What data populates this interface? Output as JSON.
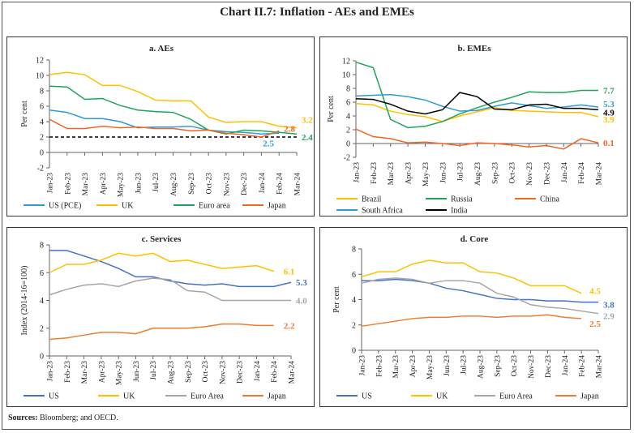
{
  "title": "Chart II.7: Inflation - AEs and EMEs",
  "source": {
    "label": "Sources:",
    "text": "Bloomberg; and OECD."
  },
  "chart_data": [
    {
      "type": "line",
      "title": "a. AEs",
      "ylabel": "Per cent",
      "ylim": [
        -2,
        12
      ],
      "yticks": [
        -2,
        0,
        2,
        4,
        6,
        8,
        10,
        12
      ],
      "categories": [
        "Jan-23",
        "Feb-23",
        "Mar-23",
        "Apr-23",
        "May-23",
        "Jun-23",
        "Jul-23",
        "Aug-23",
        "Sep-23",
        "Oct-23",
        "Nov-23",
        "Dec-23",
        "Jan-24",
        "Feb-24",
        "Mar-24"
      ],
      "reference_line": {
        "value": 2,
        "style": "dashed",
        "color": "#000000"
      },
      "series": [
        {
          "name": "US (PCE)",
          "color": "#2e9bd6",
          "values": [
            5.5,
            5.2,
            4.4,
            4.4,
            4.0,
            3.2,
            3.3,
            3.3,
            3.4,
            2.9,
            2.7,
            2.6,
            2.4,
            2.5,
            null
          ],
          "end_label": "2.5"
        },
        {
          "name": "UK",
          "color": "#ffc000",
          "values": [
            10.1,
            10.4,
            10.1,
            8.7,
            8.7,
            7.9,
            6.8,
            6.7,
            6.7,
            4.6,
            3.9,
            4.0,
            4.0,
            3.4,
            3.2
          ],
          "end_label": "3.2"
        },
        {
          "name": "Euro area",
          "color": "#1fa55a",
          "values": [
            8.6,
            8.5,
            6.9,
            7.0,
            6.1,
            5.5,
            5.3,
            5.2,
            4.3,
            2.9,
            2.4,
            2.9,
            2.8,
            2.6,
            2.4
          ],
          "end_label": "2.4"
        },
        {
          "name": "Japan",
          "color": "#f26522",
          "values": [
            4.3,
            3.1,
            3.1,
            3.4,
            3.2,
            3.3,
            3.1,
            3.1,
            2.8,
            2.9,
            2.5,
            2.3,
            2.0,
            2.8,
            null
          ],
          "end_label": "2.8"
        }
      ]
    },
    {
      "type": "line",
      "title": "b. EMEs",
      "ylabel": "Per cent",
      "ylim": [
        -2,
        12
      ],
      "yticks": [
        -2,
        0,
        2,
        4,
        6,
        8,
        10,
        12
      ],
      "categories": [
        "Jan-23",
        "Feb-23",
        "Mar-23",
        "Apr-23",
        "May-23",
        "Jun-23",
        "Jul-23",
        "Aug-23",
        "Sep-23",
        "Oct-23",
        "Nov-23",
        "Dec-23",
        "Jan-24",
        "Feb-24",
        "Mar-24"
      ],
      "series": [
        {
          "name": "Brazil",
          "color": "#ffc000",
          "values": [
            5.8,
            5.6,
            4.7,
            4.2,
            3.9,
            3.2,
            4.0,
            4.6,
            5.2,
            4.8,
            4.7,
            4.6,
            4.5,
            4.5,
            3.9
          ],
          "end_label": "3.9"
        },
        {
          "name": "Russia",
          "color": "#1fa55a",
          "values": [
            11.8,
            11.0,
            3.5,
            2.3,
            2.5,
            3.2,
            4.3,
            5.2,
            6.0,
            6.7,
            7.5,
            7.4,
            7.4,
            7.7,
            7.7
          ],
          "end_label": "7.7"
        },
        {
          "name": "China",
          "color": "#f26522",
          "values": [
            2.1,
            1.0,
            0.7,
            0.1,
            0.2,
            0.0,
            -0.3,
            0.1,
            0.0,
            -0.2,
            -0.5,
            -0.3,
            -0.8,
            0.7,
            0.1
          ],
          "end_label": "0.1"
        },
        {
          "name": "South Africa",
          "color": "#2e9bd6",
          "values": [
            6.9,
            7.0,
            7.1,
            6.8,
            6.3,
            5.4,
            4.7,
            4.8,
            5.4,
            5.9,
            5.5,
            5.1,
            5.3,
            5.6,
            5.3
          ],
          "end_label": "5.3"
        },
        {
          "name": "India",
          "color": "#000000",
          "values": [
            6.5,
            6.4,
            5.7,
            4.7,
            4.3,
            4.9,
            7.4,
            6.8,
            5.0,
            4.9,
            5.6,
            5.7,
            5.1,
            5.1,
            4.9
          ],
          "end_label": "4.9"
        }
      ]
    },
    {
      "type": "line",
      "title": "c. Services",
      "ylabel": "Index (2014-16=100)",
      "ylim": [
        0,
        8
      ],
      "yticks": [
        0,
        2,
        4,
        6,
        8
      ],
      "categories": [
        "Jan-23",
        "Feb-23",
        "Mar-23",
        "Apr-23",
        "May-23",
        "Jun-23",
        "Jul-23",
        "Aug-23",
        "Sep-23",
        "Oct-23",
        "Nov-23",
        "Dec-23",
        "Jan-24",
        "Feb-24",
        "Mar-24"
      ],
      "series": [
        {
          "name": "US",
          "color": "#4472c4",
          "values": [
            7.6,
            7.6,
            7.2,
            6.8,
            6.3,
            5.7,
            5.7,
            5.4,
            5.2,
            5.1,
            5.2,
            5.0,
            5.0,
            5.0,
            5.3
          ],
          "end_label": "5.3"
        },
        {
          "name": "UK",
          "color": "#ffc000",
          "values": [
            6.0,
            6.6,
            6.6,
            6.9,
            7.4,
            7.2,
            7.4,
            6.8,
            6.9,
            6.6,
            6.3,
            6.4,
            6.5,
            6.1,
            null
          ],
          "end_label": "6.1"
        },
        {
          "name": "Euro Area",
          "color": "#a6a6a6",
          "values": [
            4.4,
            4.8,
            5.1,
            5.2,
            5.0,
            5.4,
            5.6,
            5.5,
            4.7,
            4.6,
            4.0,
            4.0,
            4.0,
            4.0,
            4.0
          ],
          "end_label": "4.0"
        },
        {
          "name": "Japan",
          "color": "#ed7d31",
          "values": [
            1.2,
            1.3,
            1.5,
            1.7,
            1.7,
            1.6,
            2.0,
            2.0,
            2.0,
            2.1,
            2.3,
            2.3,
            2.2,
            2.2,
            null
          ],
          "end_label": "2.2"
        }
      ]
    },
    {
      "type": "line",
      "title": "d. Core",
      "ylabel": "Per cent",
      "ylim": [
        0,
        8
      ],
      "yticks": [
        0,
        2,
        4,
        6,
        8
      ],
      "categories": [
        "Jan-23",
        "Feb-23",
        "Mar-23",
        "Apr-23",
        "May-23",
        "Jun-23",
        "Jul-23",
        "Aug-23",
        "Sep-23",
        "Oct-23",
        "Nov-23",
        "Dec-23",
        "Jan-24",
        "Feb-24",
        "Mar-24"
      ],
      "series": [
        {
          "name": "US",
          "color": "#4472c4",
          "values": [
            5.5,
            5.5,
            5.6,
            5.5,
            5.3,
            4.9,
            4.7,
            4.4,
            4.1,
            4.0,
            4.0,
            3.9,
            3.9,
            3.8,
            3.8
          ],
          "end_label": "3.8"
        },
        {
          "name": "UK",
          "color": "#ffc000",
          "values": [
            5.8,
            6.2,
            6.2,
            6.8,
            7.1,
            6.9,
            6.9,
            6.2,
            6.1,
            5.7,
            5.1,
            5.1,
            5.1,
            4.5,
            null
          ],
          "end_label": "4.5"
        },
        {
          "name": "Euro Area",
          "color": "#a6a6a6",
          "values": [
            5.3,
            5.6,
            5.7,
            5.6,
            5.3,
            5.5,
            5.5,
            5.3,
            4.5,
            4.2,
            3.6,
            3.4,
            3.3,
            3.1,
            2.9
          ],
          "end_label": "2.9"
        },
        {
          "name": "Japan",
          "color": "#ed7d31",
          "values": [
            1.9,
            2.1,
            2.3,
            2.5,
            2.6,
            2.6,
            2.7,
            2.7,
            2.6,
            2.7,
            2.7,
            2.8,
            2.6,
            2.5,
            null
          ],
          "end_label": "2.5"
        }
      ]
    }
  ]
}
